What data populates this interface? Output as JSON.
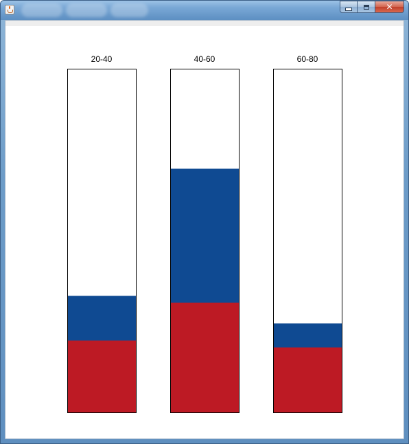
{
  "window": {
    "controls": {
      "close_glyph": "✕"
    }
  },
  "colors": {
    "bottom_segment": "#bd1a24",
    "middle_segment": "#0f4a92",
    "empty": "#ffffff",
    "outline": "#000000"
  },
  "chart_data": {
    "type": "bar",
    "stacked": true,
    "categories": [
      "20-40",
      "40-60",
      "60-80"
    ],
    "series": [
      {
        "color": "#bd1a24",
        "values": [
          0.21,
          0.32,
          0.19
        ]
      },
      {
        "color": "#0f4a92",
        "values": [
          0.13,
          0.39,
          0.07
        ]
      }
    ],
    "ylim": [
      0,
      1
    ],
    "grid": false,
    "legend": "none"
  }
}
